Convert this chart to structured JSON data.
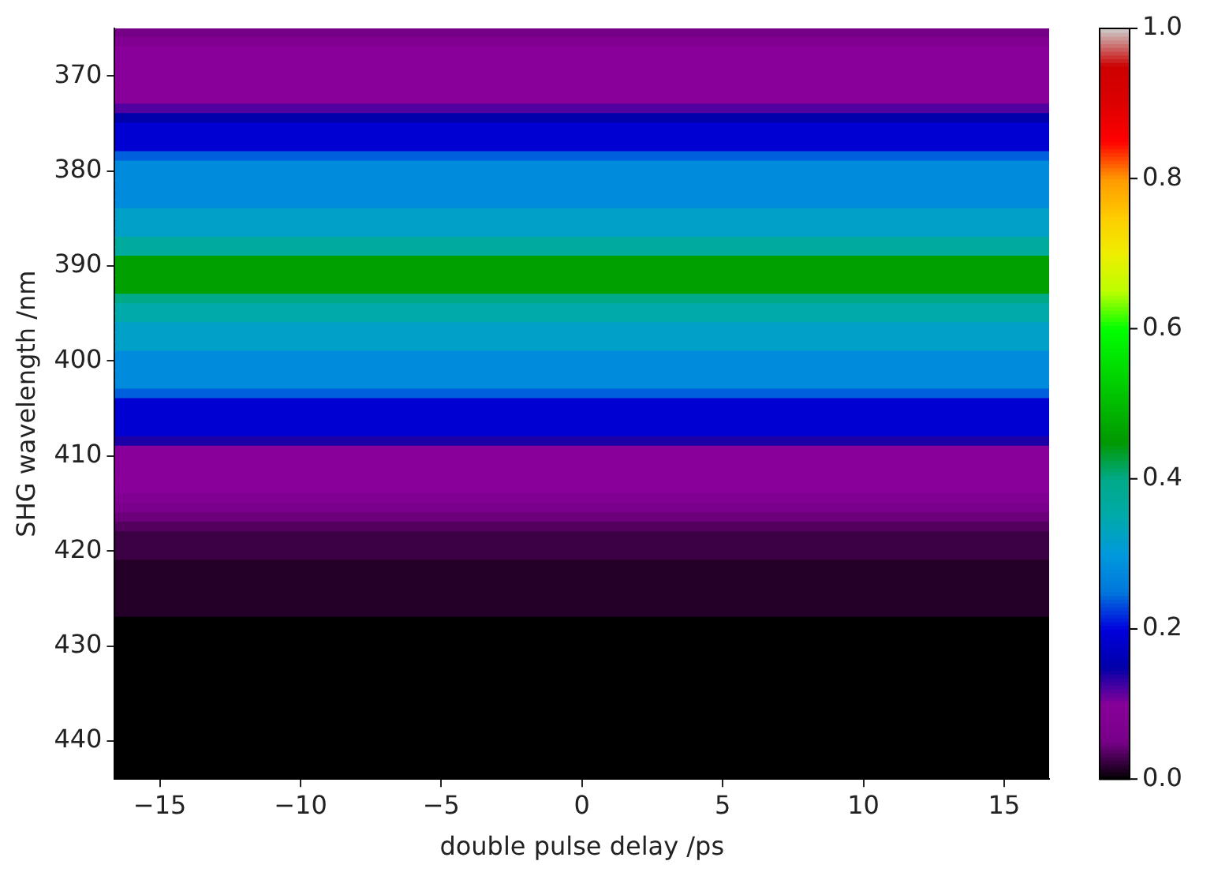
{
  "chart_data": {
    "type": "heatmap",
    "xlabel": "double pulse delay /ps",
    "ylabel": "SHG wavelength /nm",
    "xlim": [
      -16.6,
      16.6
    ],
    "xticks": [
      -15,
      -10,
      -5,
      0,
      5,
      10,
      15
    ],
    "ylim": [
      444,
      365
    ],
    "yticks": [
      370,
      380,
      390,
      400,
      410,
      420,
      430,
      440
    ],
    "clim": [
      0,
      1
    ],
    "cticks": [
      {
        "value": 0,
        "label": "0.0"
      },
      0.2,
      0.4,
      0.6,
      0.8,
      {
        "value": 1,
        "label": "1.0"
      }
    ],
    "cells": [
      [
        0.05
      ],
      [
        0.08
      ],
      [
        0.1
      ],
      [
        0.1
      ],
      [
        0.1
      ],
      [
        0.1
      ],
      [
        0.1
      ],
      [
        0.1
      ],
      [
        0.12
      ],
      [
        0.15
      ],
      [
        0.19
      ],
      [
        0.19
      ],
      [
        0.19
      ],
      [
        0.24
      ],
      [
        0.28
      ],
      [
        0.28
      ],
      [
        0.28
      ],
      [
        0.28
      ],
      [
        0.28
      ],
      [
        0.32
      ],
      [
        0.32
      ],
      [
        0.32
      ],
      [
        0.37
      ],
      [
        0.37
      ],
      [
        0.46
      ],
      [
        0.46
      ],
      [
        0.46
      ],
      [
        0.46
      ],
      [
        0.4
      ],
      [
        0.35
      ],
      [
        0.35
      ],
      [
        0.32
      ],
      [
        0.32
      ],
      [
        0.32
      ],
      [
        0.28
      ],
      [
        0.28
      ],
      [
        0.28
      ],
      [
        0.28
      ],
      [
        0.24
      ],
      [
        0.19
      ],
      [
        0.19
      ],
      [
        0.19
      ],
      [
        0.19
      ],
      [
        0.14
      ],
      [
        0.1
      ],
      [
        0.1
      ],
      [
        0.1
      ],
      [
        0.1
      ],
      [
        0.1
      ],
      [
        0.08
      ],
      [
        0.06
      ],
      [
        0.045
      ],
      [
        0.035
      ],
      [
        0.025
      ],
      [
        0.025
      ],
      [
        0.025
      ],
      [
        0.015
      ],
      [
        0.015
      ],
      [
        0.015
      ],
      [
        0.015
      ],
      [
        0.015
      ],
      [
        0.015
      ],
      [
        0
      ],
      [
        0
      ],
      [
        0
      ],
      [
        0
      ],
      [
        0
      ],
      [
        0
      ],
      [
        0
      ],
      [
        0
      ],
      [
        0
      ],
      [
        0
      ],
      [
        0
      ],
      [
        0
      ],
      [
        0
      ],
      [
        0
      ],
      [
        0
      ],
      [
        0
      ],
      [
        0
      ]
    ]
  }
}
